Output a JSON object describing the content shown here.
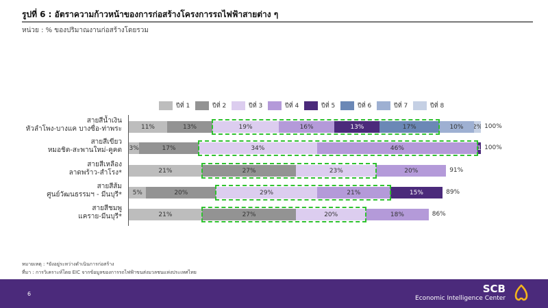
{
  "header": {
    "title": "รูปที่ 6 : อัตราความก้าวหน้าของการก่อสร้างโครงการรถไฟฟ้าสายต่าง ๆ",
    "unit": "หน่วย : % ของปริมาณงานก่อสร้างโดยรวม"
  },
  "legend": [
    {
      "label": "ปีที่ 1",
      "color": "#bdbdbd"
    },
    {
      "label": "ปีที่ 2",
      "color": "#939393"
    },
    {
      "label": "ปีที่ 3",
      "color": "#dccdef"
    },
    {
      "label": "ปีที่ 4",
      "color": "#b49ad9"
    },
    {
      "label": "ปีที่ 5",
      "color": "#4b2a7b"
    },
    {
      "label": "ปีที่ 6",
      "color": "#6b88b6"
    },
    {
      "label": "ปีที่ 7",
      "color": "#9eb0d2"
    },
    {
      "label": "ปีที่ 8",
      "color": "#c5d0e4"
    }
  ],
  "rows": [
    {
      "line1": "สายสีน้ำเงิน",
      "line2": "หัวลำโพง-บางแค บางซื่อ-ท่าพระ",
      "total": "100%"
    },
    {
      "line1": "สายสีเขียว",
      "line2": "หมอชิต-สะพานใหม่-คูคต",
      "total": "100%"
    },
    {
      "line1": "สายสีเหลือง",
      "line2": "ลาดพร้าว-สำโรง*",
      "total": "91%"
    },
    {
      "line1": "สายสีส้ม",
      "line2": "ศูนย์วัฒนธรรมฯ - มีนบุรี*",
      "total": "89%"
    },
    {
      "line1": "สายสีชมพู",
      "line2": "แคราย-มีนบุรี*",
      "total": "86%"
    }
  ],
  "chart_data": {
    "type": "bar",
    "orientation": "horizontal-stacked",
    "title": "รูปที่ 6 : อัตราความก้าวหน้าของการก่อสร้างโครงการรถไฟฟ้าสายต่าง ๆ",
    "subtitle": "หน่วย : % ของปริมาณงานก่อสร้างโดยรวม",
    "categories": [
      "สายสีน้ำเงิน หัวลำโพง-บางแค บางซื่อ-ท่าพระ",
      "สายสีเขียว หมอชิต-สะพานใหม่-คูคต",
      "สายสีเหลือง ลาดพร้าว-สำโรง*",
      "สายสีส้ม ศูนย์วัฒนธรรมฯ - มีนบุรี*",
      "สายสีชมพู แคราย-มีนบุรี*"
    ],
    "series": [
      {
        "name": "ปีที่ 1",
        "values": [
          11,
          3,
          21,
          5,
          21
        ]
      },
      {
        "name": "ปีที่ 2",
        "values": [
          13,
          17,
          27,
          20,
          27
        ]
      },
      {
        "name": "ปีที่ 3",
        "values": [
          19,
          34,
          23,
          29,
          20
        ]
      },
      {
        "name": "ปีที่ 4",
        "values": [
          16,
          46,
          20,
          21,
          18
        ]
      },
      {
        "name": "ปีที่ 5",
        "values": [
          13,
          1,
          0,
          15,
          0
        ]
      },
      {
        "name": "ปีที่ 6",
        "values": [
          17,
          0,
          0,
          0,
          0
        ]
      },
      {
        "name": "ปีที่ 7",
        "values": [
          10,
          0,
          0,
          0,
          0
        ]
      },
      {
        "name": "ปีที่ 8",
        "values": [
          2,
          0,
          0,
          0,
          0
        ]
      }
    ],
    "totals": [
      "100%",
      "100%",
      "91%",
      "89%",
      "86%"
    ],
    "highlighted_ranges": [
      {
        "row": 0,
        "from_series": 2,
        "to_series": 5
      },
      {
        "row": 1,
        "from_series": 2,
        "to_series": 3
      },
      {
        "row": 2,
        "from_series": 1,
        "to_series": 2
      },
      {
        "row": 3,
        "from_series": 2,
        "to_series": 3
      },
      {
        "row": 4,
        "from_series": 1,
        "to_series": 2
      }
    ],
    "highlight_color": "#2ec12e",
    "legend_position": "top",
    "grid": false,
    "xlim": [
      0,
      100
    ]
  },
  "notes": {
    "remark": "หมายเหตุ : *ยังอยู่ระหว่างดำเนินการก่อสร้าง",
    "source": "ที่มา : การวิเคราะห์โดย EIC จากข้อมูลของการรถไฟฟ้าขนส่งมวลชนแห่งประเทศไทย"
  },
  "footer": {
    "page_number": "6",
    "brand_name": "SCB",
    "brand_sub": "Economic Intelligence Center",
    "logo_icon": "scb-logo-icon",
    "bg_color": "#4b2a7b",
    "logo_color": "#f3b51d"
  }
}
